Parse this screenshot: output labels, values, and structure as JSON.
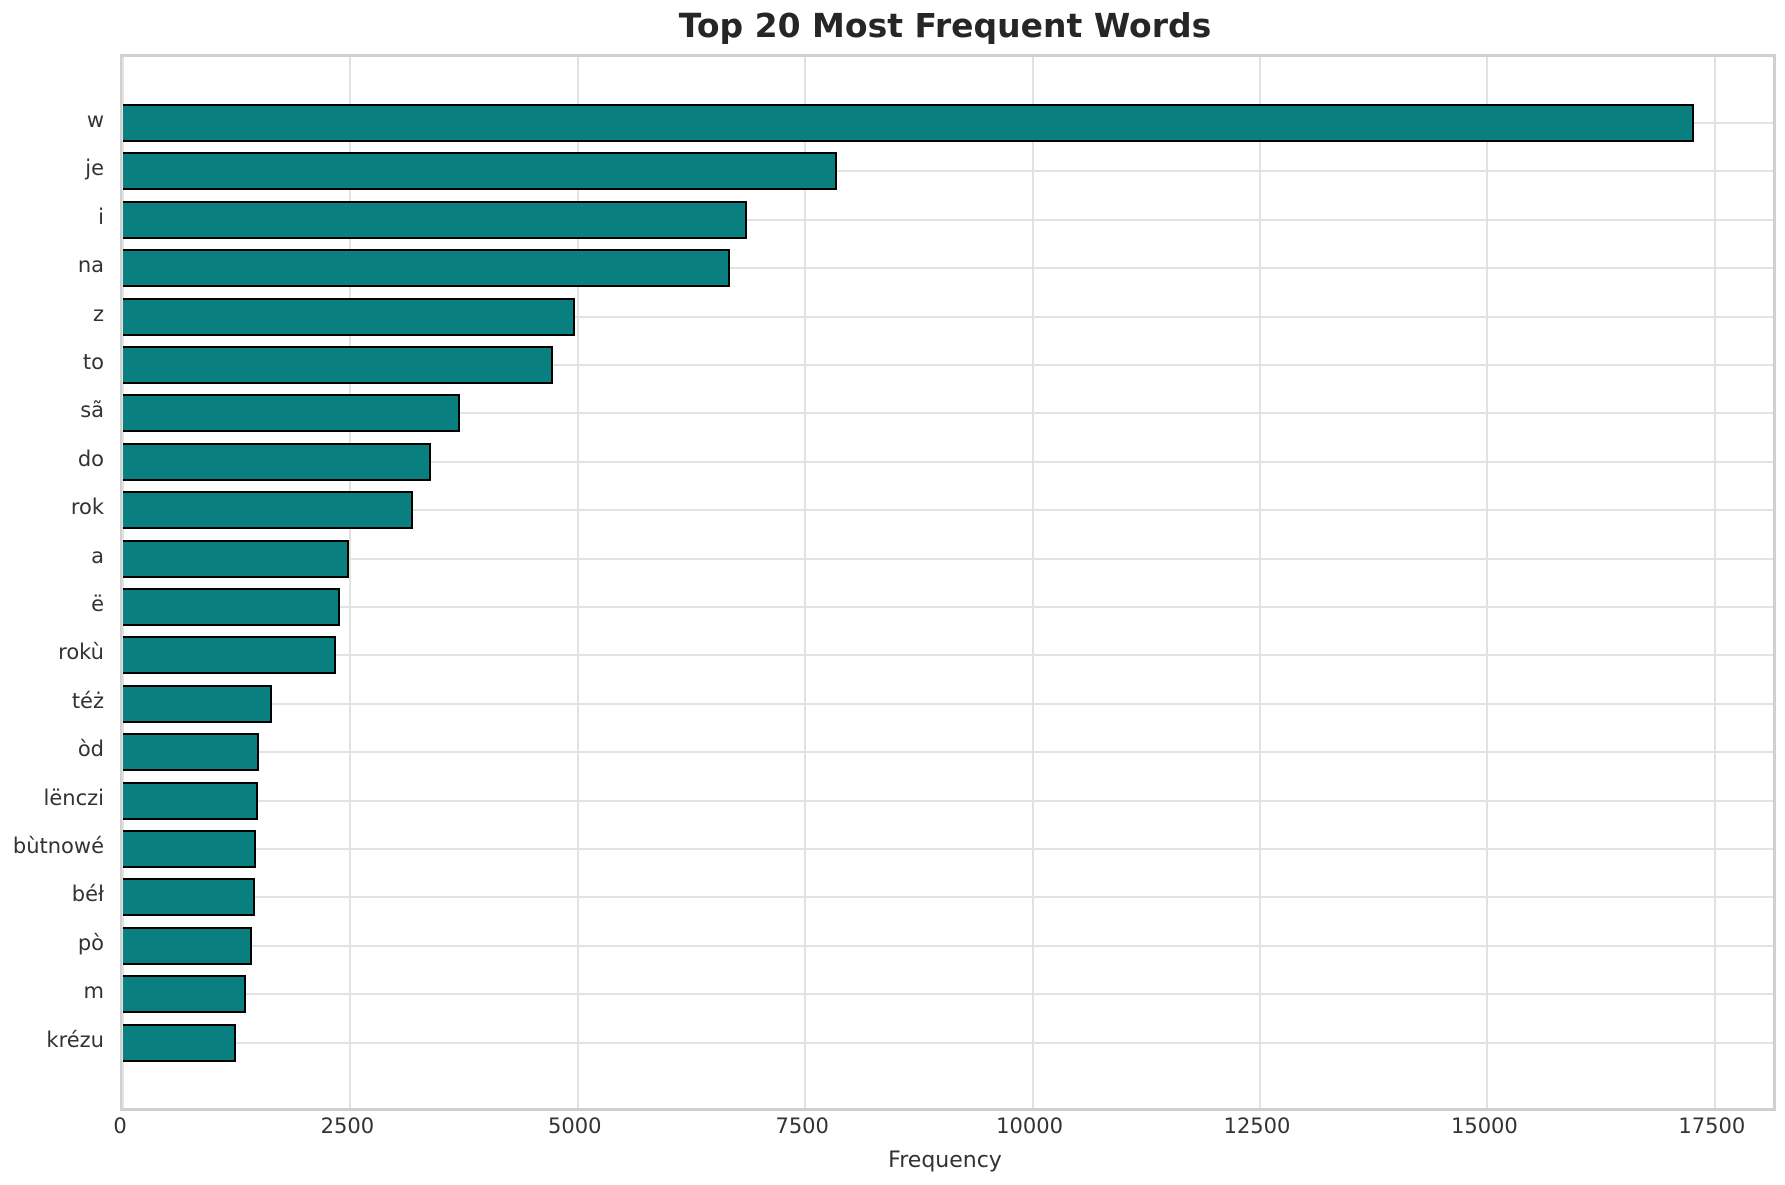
{
  "chart_data": {
    "type": "bar",
    "orientation": "horizontal",
    "title": "Top 20 Most Frequent Words",
    "xlabel": "Frequency",
    "ylabel": "",
    "categories": [
      "w",
      "je",
      "i",
      "na",
      "z",
      "to",
      "sã",
      "do",
      "rok",
      "a",
      "ë",
      "rokù",
      "téż",
      "òd",
      "lënczi",
      "bùtnowé",
      "béł",
      "pò",
      "m",
      "krézu"
    ],
    "values": [
      17270,
      7850,
      6860,
      6670,
      4970,
      4730,
      3710,
      3390,
      3190,
      2490,
      2390,
      2340,
      1640,
      1490,
      1480,
      1460,
      1450,
      1420,
      1350,
      1240
    ],
    "x_ticks": [
      0,
      2500,
      5000,
      7500,
      10000,
      12500,
      15000,
      17500
    ],
    "xlim": [
      0,
      18140
    ],
    "grid": true,
    "legend": false,
    "colors": {
      "bar_fill": "#0a7f80",
      "bar_edge": "#000000",
      "grid": "#e2e2e2",
      "spine": "#d0d0d0",
      "tick_text": "#333333",
      "title_text": "#262626",
      "background": "#ffffff"
    }
  }
}
